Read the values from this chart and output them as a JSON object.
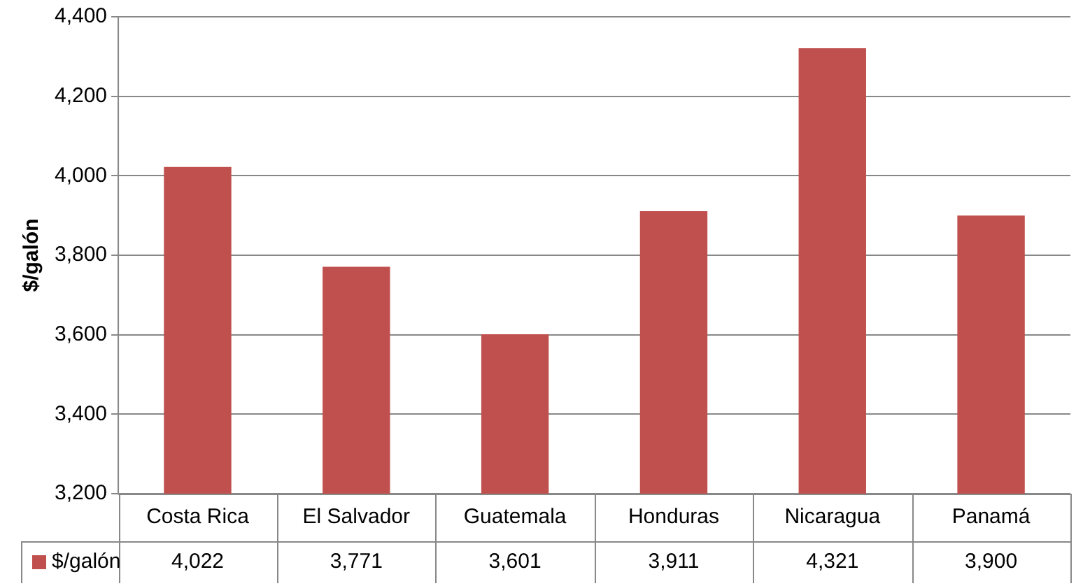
{
  "chart_data": {
    "type": "bar",
    "ylabel": "$/galón",
    "categories": [
      "Costa Rica",
      "El Salvador",
      "Guatemala",
      "Honduras",
      "Nicaragua",
      "Panamá"
    ],
    "series": [
      {
        "name": "$/galón",
        "color": "#c0504d",
        "values": [
          4022,
          3771,
          3601,
          3911,
          4321,
          3900
        ],
        "value_labels": [
          "4,022",
          "3,771",
          "3,601",
          "3,911",
          "4,321",
          "3,900"
        ]
      }
    ],
    "ylim": [
      3200,
      4400
    ],
    "yticks": [
      {
        "value": 3200,
        "label": "3,200"
      },
      {
        "value": 3400,
        "label": "3,400"
      },
      {
        "value": 3600,
        "label": "3,600"
      },
      {
        "value": 3800,
        "label": "3,800"
      },
      {
        "value": 4000,
        "label": "4,000"
      },
      {
        "value": 4200,
        "label": "4,200"
      },
      {
        "value": 4400,
        "label": "4,400"
      }
    ],
    "grid": "y",
    "legend": "bottom"
  }
}
